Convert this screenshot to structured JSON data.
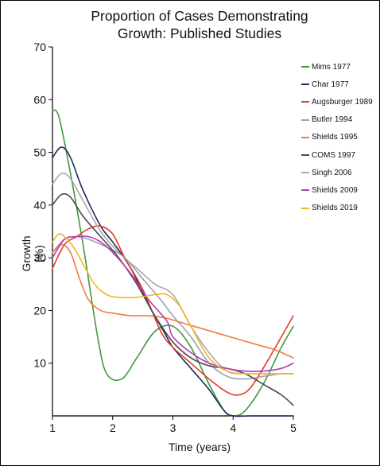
{
  "chart_data": {
    "type": "line",
    "title_lines": [
      "Proportion of Cases Demonstrating",
      "Growth: Published Studies"
    ],
    "xlabel": "Time (years)",
    "ylabel": "Growth (%)",
    "xlim": [
      1,
      5
    ],
    "ylim": [
      0,
      70
    ],
    "xticks": [
      1,
      2,
      3,
      4,
      5
    ],
    "yticks": [
      10,
      20,
      30,
      40,
      50,
      60,
      70
    ],
    "grid": false,
    "legend_position": "top-right",
    "series": [
      {
        "name": "Mims 1977",
        "color": "#3f9a3c",
        "x": [
          1.0,
          1.1,
          1.25,
          1.5,
          1.75,
          1.9,
          2.15,
          2.4,
          2.7,
          3.0,
          3.3,
          3.6,
          3.85,
          4.0,
          4.2,
          4.5,
          4.8,
          5.0
        ],
        "y": [
          58,
          57,
          49,
          33,
          15,
          8,
          7,
          11,
          16,
          17,
          13,
          6,
          1,
          0,
          1,
          6,
          13,
          17
        ]
      },
      {
        "name": "Char 1977",
        "color": "#1f2a60",
        "x": [
          1.0,
          1.15,
          1.3,
          1.5,
          1.8,
          2.0,
          2.3,
          2.6,
          2.85,
          3.0,
          3.3,
          3.6,
          3.85,
          4.0,
          4.3,
          4.6,
          5.0
        ],
        "y": [
          49,
          51,
          49,
          43,
          36,
          33,
          28,
          21,
          16,
          13,
          9,
          5,
          1,
          0,
          0,
          0,
          0
        ]
      },
      {
        "name": "Augsburger 1989",
        "color": "#e63a22",
        "x": [
          1.0,
          1.2,
          1.4,
          1.6,
          1.8,
          2.0,
          2.2,
          2.5,
          2.8,
          3.0,
          3.3,
          3.6,
          3.9,
          4.1,
          4.3,
          4.6,
          5.0
        ],
        "y": [
          28,
          32.5,
          34,
          35.5,
          36,
          34.5,
          30,
          24,
          16,
          13,
          10,
          7,
          4.5,
          4,
          5.5,
          11,
          19
        ]
      },
      {
        "name": "Butler 1994",
        "color": "#9aa0b4",
        "x": [
          1.0,
          1.2,
          1.4,
          1.6,
          1.9,
          2.2,
          2.5,
          2.8,
          3.0,
          3.3,
          3.6,
          3.9,
          4.2,
          4.5,
          4.8,
          5.0
        ],
        "y": [
          31,
          33.5,
          34,
          33.5,
          32,
          30,
          26,
          22,
          19,
          15,
          10,
          7.5,
          7,
          7.5,
          8,
          8
        ]
      },
      {
        "name": "Shields 1995",
        "color": "#f07a40",
        "x": [
          1.0,
          1.15,
          1.3,
          1.45,
          1.6,
          1.8,
          2.0,
          2.3,
          2.6,
          2.9,
          3.2,
          3.5,
          3.8,
          4.1,
          4.4,
          4.7,
          5.0
        ],
        "y": [
          31,
          32.5,
          31,
          26,
          22,
          20,
          19.5,
          19,
          19,
          18.5,
          17.5,
          16.5,
          15.5,
          14.5,
          13.5,
          12.5,
          11
        ]
      },
      {
        "name": "COMS 1997",
        "color": "#4a4a4a",
        "x": [
          1.0,
          1.15,
          1.3,
          1.5,
          1.8,
          2.1,
          2.4,
          2.7,
          3.0,
          3.3,
          3.6,
          3.9,
          4.2,
          4.5,
          4.8,
          5.0
        ],
        "y": [
          40,
          42,
          41.5,
          38,
          34,
          30,
          25,
          19,
          14,
          11,
          9.5,
          9,
          8,
          6,
          4,
          2
        ]
      },
      {
        "name": "Singh 2006",
        "color": "#a8a8a8",
        "x": [
          1.0,
          1.15,
          1.3,
          1.5,
          1.8,
          2.1,
          2.4,
          2.7,
          3.0,
          3.3,
          3.6,
          3.9,
          4.2,
          4.5,
          4.8,
          5.0
        ],
        "y": [
          44,
          46,
          45,
          41,
          35,
          31,
          28,
          25,
          23,
          17,
          12,
          8.5,
          8,
          8,
          8,
          8
        ]
      },
      {
        "name": "Shields 2009",
        "color": "#b43cb4",
        "x": [
          1.0,
          1.2,
          1.4,
          1.6,
          1.8,
          2.0,
          2.3,
          2.6,
          2.9,
          3.0,
          3.3,
          3.6,
          3.9,
          4.2,
          4.5,
          4.8,
          5.0
        ],
        "y": [
          30,
          33.5,
          34,
          34,
          33,
          31,
          27,
          22,
          18,
          15,
          12,
          10,
          9,
          8.5,
          8.5,
          9,
          10
        ]
      },
      {
        "name": "Shields 2019",
        "color": "#f5b22a",
        "x": [
          1.0,
          1.1,
          1.2,
          1.35,
          1.5,
          1.7,
          1.9,
          2.1,
          2.4,
          2.7,
          2.9,
          3.1,
          3.3,
          3.6,
          3.9,
          4.2,
          4.5,
          4.8,
          5.0
        ],
        "y": [
          33,
          34.5,
          34,
          32,
          29,
          25,
          23,
          22.5,
          22.5,
          23,
          23,
          21,
          17,
          11,
          8.5,
          8,
          8,
          8,
          8
        ]
      }
    ]
  }
}
